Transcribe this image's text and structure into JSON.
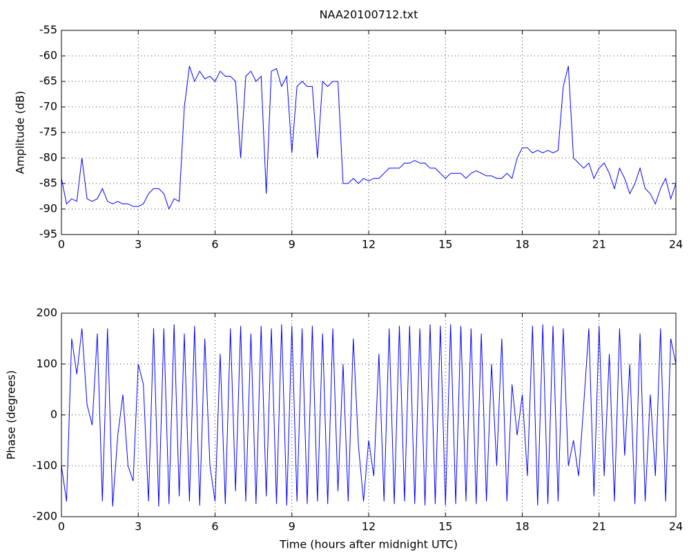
{
  "chart_data": [
    {
      "type": "line",
      "title": "NAA20100712.txt",
      "ylabel": "Amplitude (dB)",
      "grid": true,
      "xlim": [
        0,
        24
      ],
      "xticks": [
        0,
        3,
        6,
        9,
        12,
        15,
        18,
        21,
        24
      ],
      "ylim": [
        -95,
        -55
      ],
      "yticks": [
        -95,
        -90,
        -85,
        -80,
        -75,
        -70,
        -65,
        -60,
        -55
      ],
      "x": [
        0,
        0.2,
        0.4,
        0.6,
        0.8,
        1,
        1.2,
        1.4,
        1.6,
        1.8,
        2,
        2.2,
        2.4,
        2.6,
        2.8,
        3,
        3.2,
        3.4,
        3.6,
        3.8,
        4,
        4.2,
        4.4,
        4.6,
        4.8,
        5,
        5.2,
        5.4,
        5.6,
        5.8,
        6,
        6.2,
        6.4,
        6.6,
        6.8,
        7,
        7.2,
        7.4,
        7.6,
        7.8,
        8,
        8.2,
        8.4,
        8.6,
        8.8,
        9,
        9.2,
        9.4,
        9.6,
        9.8,
        10,
        10.2,
        10.4,
        10.6,
        10.8,
        11,
        11.2,
        11.4,
        11.6,
        11.8,
        12,
        12.2,
        12.4,
        12.6,
        12.8,
        13,
        13.2,
        13.4,
        13.6,
        13.8,
        14,
        14.2,
        14.4,
        14.6,
        14.8,
        15,
        15.2,
        15.4,
        15.6,
        15.8,
        16,
        16.2,
        16.4,
        16.6,
        16.8,
        17,
        17.2,
        17.4,
        17.6,
        17.8,
        18,
        18.2,
        18.4,
        18.6,
        18.8,
        19,
        19.2,
        19.4,
        19.6,
        19.8,
        20,
        20.2,
        20.4,
        20.6,
        20.8,
        21,
        21.2,
        21.4,
        21.6,
        21.8,
        22,
        22.2,
        22.4,
        22.6,
        22.8,
        23,
        23.2,
        23.4,
        23.6,
        23.8,
        24
      ],
      "series": [
        {
          "name": "Amplitude",
          "color": "#0000ff",
          "values": [
            -84,
            -89,
            -88,
            -88.5,
            -80,
            -88,
            -88.5,
            -88,
            -86,
            -88.5,
            -89,
            -88.5,
            -89,
            -89,
            -89.5,
            -89.5,
            -89,
            -87,
            -86,
            -86,
            -87,
            -90,
            -88,
            -88.5,
            -70,
            -62,
            -65,
            -63,
            -64.5,
            -64,
            -65,
            -63,
            -64,
            -64,
            -65,
            -80,
            -64,
            -63,
            -65,
            -64,
            -87,
            -63,
            -62.5,
            -66,
            -64,
            -79,
            -66,
            -65,
            -66,
            -66,
            -80,
            -65,
            -66,
            -65,
            -65,
            -85,
            -85,
            -84,
            -85,
            -84,
            -84.5,
            -84,
            -84,
            -83,
            -82,
            -82,
            -82,
            -81,
            -81,
            -80.5,
            -81,
            -81,
            -82,
            -82,
            -83,
            -84,
            -83,
            -83,
            -83,
            -84,
            -83,
            -82.5,
            -83,
            -83.5,
            -83.5,
            -84,
            -84,
            -83,
            -84,
            -80,
            -78,
            -78,
            -79,
            -78.5,
            -79,
            -78.5,
            -79,
            -78.5,
            -66,
            -62,
            -80,
            -81,
            -82,
            -81,
            -84,
            -82,
            -81,
            -83,
            -86,
            -82,
            -84,
            -87,
            -85,
            -82,
            -86,
            -87,
            -89,
            -86,
            -84,
            -88,
            -85
          ]
        }
      ]
    },
    {
      "type": "line",
      "ylabel": "Phase (degrees)",
      "xlabel": "Time (hours after midnight UTC)",
      "grid": true,
      "xlim": [
        0,
        24
      ],
      "xticks": [
        0,
        3,
        6,
        9,
        12,
        15,
        18,
        21,
        24
      ],
      "ylim": [
        -200,
        200
      ],
      "yticks": [
        -200,
        -100,
        0,
        100,
        200
      ],
      "x": [
        0,
        0.2,
        0.4,
        0.6,
        0.8,
        1,
        1.2,
        1.4,
        1.6,
        1.8,
        2,
        2.2,
        2.4,
        2.6,
        2.8,
        3,
        3.2,
        3.4,
        3.6,
        3.8,
        4,
        4.2,
        4.4,
        4.6,
        4.8,
        5,
        5.2,
        5.4,
        5.6,
        5.8,
        6,
        6.2,
        6.4,
        6.6,
        6.8,
        7,
        7.2,
        7.4,
        7.6,
        7.8,
        8,
        8.2,
        8.4,
        8.6,
        8.8,
        9,
        9.2,
        9.4,
        9.6,
        9.8,
        10,
        10.2,
        10.4,
        10.6,
        10.8,
        11,
        11.2,
        11.4,
        11.6,
        11.8,
        12,
        12.2,
        12.4,
        12.6,
        12.8,
        13,
        13.2,
        13.4,
        13.6,
        13.8,
        14,
        14.2,
        14.4,
        14.6,
        14.8,
        15,
        15.2,
        15.4,
        15.6,
        15.8,
        16,
        16.2,
        16.4,
        16.6,
        16.8,
        17,
        17.2,
        17.4,
        17.6,
        17.8,
        18,
        18.2,
        18.4,
        18.6,
        18.8,
        19,
        19.2,
        19.4,
        19.6,
        19.8,
        20,
        20.2,
        20.4,
        20.6,
        20.8,
        21,
        21.2,
        21.4,
        21.6,
        21.8,
        22,
        22.2,
        22.4,
        22.6,
        22.8,
        23,
        23.2,
        23.4,
        23.6,
        23.8,
        24
      ],
      "series": [
        {
          "name": "Phase",
          "color": "#0000ff",
          "values": [
            -100,
            -170,
            150,
            80,
            170,
            20,
            -20,
            160,
            -170,
            170,
            -180,
            -40,
            40,
            -100,
            -130,
            100,
            60,
            -170,
            170,
            -180,
            170,
            -175,
            178,
            -160,
            160,
            -170,
            175,
            -178,
            150,
            -100,
            -170,
            120,
            -175,
            170,
            -150,
            175,
            -170,
            160,
            -175,
            175,
            -160,
            170,
            -175,
            178,
            -178,
            175,
            -170,
            170,
            -175,
            175,
            -170,
            160,
            -175,
            170,
            -150,
            100,
            -170,
            150,
            -60,
            -170,
            -50,
            -120,
            120,
            -170,
            170,
            -175,
            175,
            -170,
            175,
            -175,
            170,
            -178,
            178,
            -175,
            175,
            -178,
            178,
            -175,
            175,
            -170,
            170,
            -175,
            160,
            -170,
            100,
            -100,
            150,
            -170,
            60,
            -40,
            40,
            -120,
            175,
            -178,
            178,
            -175,
            175,
            -170,
            170,
            -100,
            -50,
            -120,
            20,
            170,
            -160,
            175,
            -120,
            120,
            -170,
            170,
            -80,
            100,
            -175,
            160,
            -170,
            40,
            -120,
            170,
            -170,
            150,
            100
          ]
        }
      ]
    }
  ]
}
